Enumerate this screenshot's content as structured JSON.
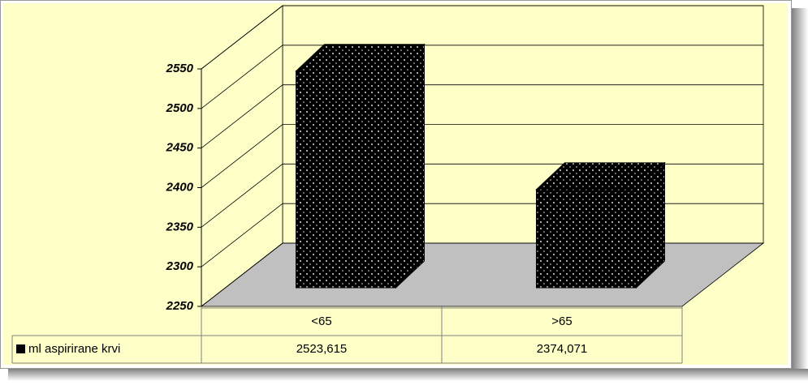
{
  "chart_data": {
    "type": "bar3d",
    "categories": [
      "<65",
      ">65"
    ],
    "series": [
      {
        "name": "ml aspirirane krvi",
        "color": "#000000",
        "values": [
          2523.615,
          2374.071
        ],
        "value_labels": [
          "2523,615",
          "2374,071"
        ]
      }
    ],
    "ylim": [
      2250,
      2550
    ],
    "yticks": [
      2250,
      2300,
      2350,
      2400,
      2450,
      2500,
      2550
    ],
    "grid": true
  }
}
